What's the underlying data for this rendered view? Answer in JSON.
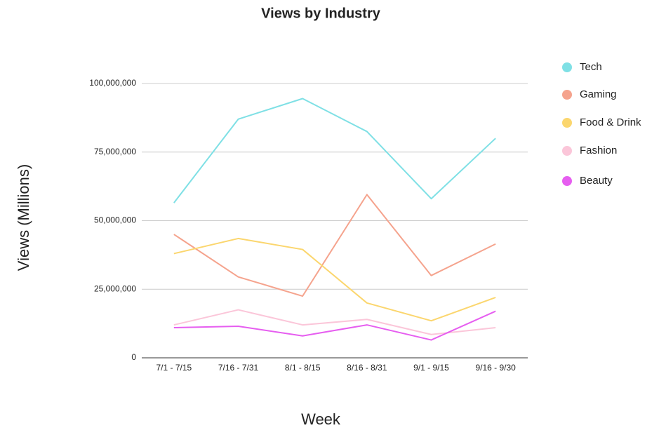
{
  "chart_data": {
    "type": "line",
    "title": "Views by Industry",
    "x_label": "Week",
    "y_label": "Views (Millions)",
    "categories": [
      "7/1 - 7/15",
      "7/16 - 7/31",
      "8/1 - 8/15",
      "8/16 - 8/31",
      "9/1 - 9/15",
      "9/16 - 9/30"
    ],
    "series": [
      {
        "name": "Tech",
        "color": "#7fe0e5",
        "values": [
          56500000,
          87000000,
          94500000,
          82500000,
          58000000,
          80000000
        ]
      },
      {
        "name": "Gaming",
        "color": "#f5a38d",
        "values": [
          45000000,
          29500000,
          22500000,
          59500000,
          30000000,
          41500000
        ]
      },
      {
        "name": "Food & Drink",
        "color": "#fbd66e",
        "values": [
          38000000,
          43500000,
          39500000,
          20000000,
          13500000,
          22000000
        ]
      },
      {
        "name": "Fashion",
        "color": "#fbc6d9",
        "values": [
          12000000,
          17500000,
          12000000,
          14000000,
          8500000,
          11000000
        ]
      },
      {
        "name": "Beauty",
        "color": "#e65ef0",
        "values": [
          11000000,
          11500000,
          8000000,
          12000000,
          6500000,
          17000000
        ]
      }
    ],
    "ylim": [
      0,
      100000000
    ],
    "yticks": [
      0,
      {
        "value": 25000000,
        "label": "25,000,000"
      },
      {
        "value": 50000000,
        "label": "50,000,000"
      },
      {
        "value": 75000000,
        "label": "75,000,000"
      },
      {
        "value": 100000000,
        "label": "100,000,000"
      }
    ],
    "grid": true,
    "legend": "right"
  }
}
